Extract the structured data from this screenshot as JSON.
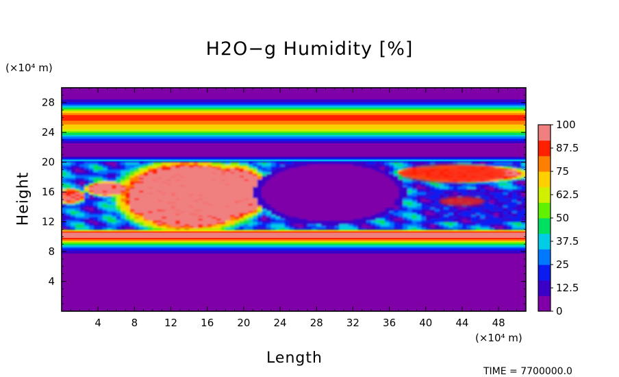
{
  "chart_data": {
    "type": "heatmap",
    "title": "H2O−g Humidity [%]",
    "xlabel": "Length",
    "ylabel": "Height",
    "x_unit": "(×10⁴ m)",
    "y_unit": "(×10⁴ m)",
    "xlim": [
      0,
      51
    ],
    "ylim": [
      0,
      30
    ],
    "x_ticks": [
      "4",
      "8",
      "12",
      "16",
      "20",
      "24",
      "28",
      "32",
      "36",
      "40",
      "44",
      "48"
    ],
    "x_tick_values": [
      4,
      8,
      12,
      16,
      20,
      24,
      28,
      32,
      36,
      40,
      44,
      48
    ],
    "y_ticks": [
      "4",
      "8",
      "12",
      "16",
      "20",
      "24",
      "28"
    ],
    "y_tick_values": [
      4,
      8,
      12,
      16,
      20,
      24,
      28
    ],
    "colorbar": {
      "labels": [
        "0",
        "12.5",
        "25",
        "37.5",
        "50",
        "62.5",
        "75",
        "87.5",
        "100"
      ],
      "values": [
        0,
        12.5,
        25,
        37.5,
        50,
        62.5,
        75,
        87.5,
        100
      ],
      "colors": [
        "#8000a8",
        "#3a00c8",
        "#0a1cf0",
        "#0078ff",
        "#00cce6",
        "#00e060",
        "#60f000",
        "#d0f000",
        "#ffd000",
        "#ff8000",
        "#ff2000",
        "#f08080"
      ]
    },
    "layers": [
      {
        "y_range": [
          0,
          7.5
        ],
        "humidity": 0
      },
      {
        "y_range": [
          7.5,
          8.5
        ],
        "humidity": 12
      },
      {
        "y_range": [
          8.5,
          9.5
        ],
        "humidity": 45
      },
      {
        "y_range": [
          9.5,
          11
        ],
        "humidity": 95
      },
      {
        "y_range": [
          11,
          20
        ],
        "humidity": "variable 0–100"
      },
      {
        "y_range": [
          20,
          22.5
        ],
        "humidity": 5
      },
      {
        "y_range": [
          22.5,
          24
        ],
        "humidity": 25
      },
      {
        "y_range": [
          24,
          27.5
        ],
        "humidity": 75
      },
      {
        "y_range": [
          27.5,
          30
        ],
        "humidity": 15
      }
    ],
    "saturated_regions": [
      {
        "x": [
          8,
          22
        ],
        "y": [
          12,
          20
        ],
        "humidity": 100
      },
      {
        "x": [
          36,
          50
        ],
        "y": [
          17,
          20
        ],
        "humidity": 90
      },
      {
        "x": [
          41,
          47
        ],
        "y": [
          14,
          15.5
        ],
        "humidity": 90
      }
    ],
    "dry_regions": [
      {
        "x": [
          22,
          37
        ],
        "y": [
          12,
          20
        ],
        "humidity": 0
      }
    ]
  },
  "footer": "TIME = 7700000.0"
}
